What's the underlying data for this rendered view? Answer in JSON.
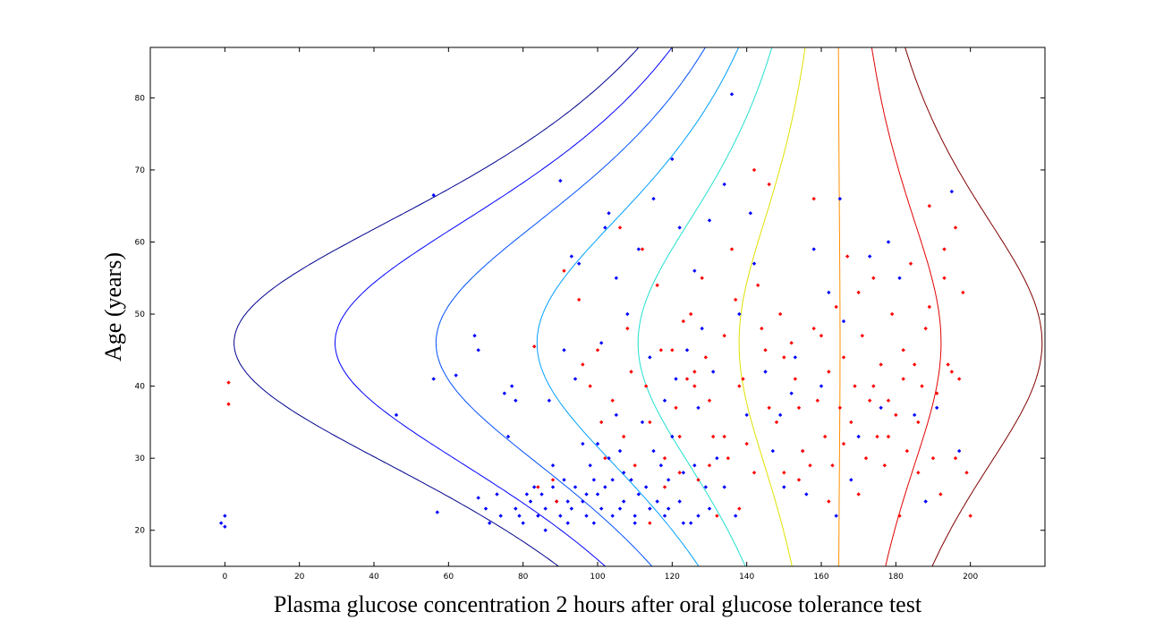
{
  "chart_data": {
    "type": "scatter",
    "title": "",
    "xlabel": "Plasma glucose concentration 2 hours after oral glucose tolerance test",
    "ylabel": "Age (years)",
    "xlim": [
      -20,
      220
    ],
    "ylim": [
      15,
      87
    ],
    "xticks": [
      0,
      20,
      40,
      60,
      80,
      100,
      120,
      140,
      160,
      180,
      200
    ],
    "yticks": [
      20,
      30,
      40,
      50,
      60,
      70,
      80
    ],
    "grid": false,
    "legend": "none",
    "contours": [
      {
        "color": "#00008f",
        "level": 1
      },
      {
        "color": "#0000ff",
        "level": 2
      },
      {
        "color": "#0050ff",
        "level": 3
      },
      {
        "color": "#00a0ff",
        "level": 4
      },
      {
        "color": "#20e0d0",
        "level": 5
      },
      {
        "color": "#e0e000",
        "level": 6
      },
      {
        "color": "#ff9000",
        "level": 7
      },
      {
        "color": "#e00000",
        "level": 8
      },
      {
        "color": "#800000",
        "level": 9
      }
    ],
    "series": [
      {
        "color": "#0000ff",
        "points": [
          [
            -1,
            21
          ],
          [
            0,
            22
          ],
          [
            0,
            20.5
          ],
          [
            46,
            36
          ],
          [
            56,
            66.5
          ],
          [
            56,
            41
          ],
          [
            57,
            22.5
          ],
          [
            62,
            41.5
          ],
          [
            67,
            47
          ],
          [
            68,
            45
          ],
          [
            68,
            24.5
          ],
          [
            70,
            23
          ],
          [
            71,
            21
          ],
          [
            73,
            25
          ],
          [
            74,
            22
          ],
          [
            75,
            39
          ],
          [
            76,
            33
          ],
          [
            77,
            40
          ],
          [
            78,
            38
          ],
          [
            78,
            23
          ],
          [
            79,
            22
          ],
          [
            80,
            21
          ],
          [
            81,
            25
          ],
          [
            82,
            24
          ],
          [
            83,
            26
          ],
          [
            84,
            22
          ],
          [
            85,
            25
          ],
          [
            86,
            23
          ],
          [
            86,
            20
          ],
          [
            87,
            38
          ],
          [
            88,
            29
          ],
          [
            89,
            24
          ],
          [
            90,
            22
          ],
          [
            90,
            68.5
          ],
          [
            91,
            45
          ],
          [
            91,
            27
          ],
          [
            92,
            21
          ],
          [
            93,
            23
          ],
          [
            94,
            41
          ],
          [
            94,
            26
          ],
          [
            95,
            57
          ],
          [
            96,
            24
          ],
          [
            97,
            22
          ],
          [
            98,
            29
          ],
          [
            99,
            21
          ],
          [
            100,
            32
          ],
          [
            100,
            25
          ],
          [
            101,
            23
          ],
          [
            101,
            46
          ],
          [
            102,
            62
          ],
          [
            103,
            64
          ],
          [
            104,
            27
          ],
          [
            104,
            22
          ],
          [
            105,
            55
          ],
          [
            105,
            36
          ],
          [
            106,
            31
          ],
          [
            107,
            24
          ],
          [
            108,
            50
          ],
          [
            109,
            27
          ],
          [
            110,
            22
          ],
          [
            111,
            59
          ],
          [
            112,
            35
          ],
          [
            113,
            26
          ],
          [
            114,
            44
          ],
          [
            115,
            66
          ],
          [
            116,
            24
          ],
          [
            117,
            29
          ],
          [
            118,
            38
          ],
          [
            119,
            23
          ],
          [
            120,
            71.5
          ],
          [
            120,
            33
          ],
          [
            121,
            41
          ],
          [
            122,
            62
          ],
          [
            123,
            28
          ],
          [
            124,
            45
          ],
          [
            125,
            21
          ],
          [
            126,
            56
          ],
          [
            127,
            37
          ],
          [
            128,
            48
          ],
          [
            129,
            26
          ],
          [
            130,
            63
          ],
          [
            131,
            42
          ],
          [
            132,
            30
          ],
          [
            134,
            68
          ],
          [
            136,
            80.5
          ],
          [
            137,
            22
          ],
          [
            138,
            50
          ],
          [
            140,
            36
          ],
          [
            141,
            64
          ],
          [
            142,
            57
          ],
          [
            145,
            42
          ],
          [
            147,
            31
          ],
          [
            149,
            36
          ],
          [
            150,
            26
          ],
          [
            152,
            39
          ],
          [
            153,
            44
          ],
          [
            155,
            31
          ],
          [
            156,
            25
          ],
          [
            158,
            59
          ],
          [
            160,
            40
          ],
          [
            162,
            53
          ],
          [
            164,
            22
          ],
          [
            165,
            66
          ],
          [
            166,
            49
          ],
          [
            168,
            27
          ],
          [
            170,
            33
          ],
          [
            173,
            58
          ],
          [
            176,
            37
          ],
          [
            178,
            60
          ],
          [
            181,
            55
          ],
          [
            185,
            36
          ],
          [
            188,
            24
          ],
          [
            191,
            37
          ],
          [
            195,
            67
          ],
          [
            197,
            31
          ],
          [
            93,
            58
          ],
          [
            96,
            32
          ],
          [
            99,
            27
          ],
          [
            103,
            30
          ],
          [
            107,
            28
          ],
          [
            111,
            25
          ],
          [
            115,
            31
          ],
          [
            119,
            27
          ],
          [
            122,
            24
          ],
          [
            126,
            29
          ],
          [
            130,
            23
          ],
          [
            134,
            26
          ],
          [
            88,
            26
          ],
          [
            92,
            24
          ],
          [
            97,
            25
          ],
          [
            102,
            26
          ],
          [
            106,
            23
          ],
          [
            110,
            21
          ],
          [
            114,
            23
          ],
          [
            118,
            22
          ],
          [
            123,
            21
          ],
          [
            127,
            22
          ]
        ]
      },
      {
        "color": "#ff0000",
        "points": [
          [
            1,
            40.5
          ],
          [
            1,
            37.5
          ],
          [
            83,
            45.5
          ],
          [
            84,
            26
          ],
          [
            88,
            27
          ],
          [
            89,
            24
          ],
          [
            91,
            56
          ],
          [
            95,
            52
          ],
          [
            96,
            43
          ],
          [
            98,
            40
          ],
          [
            100,
            45
          ],
          [
            101,
            35
          ],
          [
            102,
            30
          ],
          [
            104,
            38
          ],
          [
            106,
            62
          ],
          [
            107,
            33
          ],
          [
            108,
            48
          ],
          [
            109,
            42
          ],
          [
            110,
            29
          ],
          [
            112,
            59
          ],
          [
            113,
            40
          ],
          [
            114,
            35
          ],
          [
            116,
            54
          ],
          [
            117,
            45
          ],
          [
            118,
            30
          ],
          [
            120,
            45
          ],
          [
            121,
            37
          ],
          [
            122,
            33
          ],
          [
            123,
            49
          ],
          [
            124,
            41
          ],
          [
            125,
            50
          ],
          [
            126,
            42
          ],
          [
            127,
            27
          ],
          [
            128,
            55
          ],
          [
            129,
            44
          ],
          [
            130,
            38
          ],
          [
            131,
            33
          ],
          [
            132,
            22
          ],
          [
            134,
            47
          ],
          [
            135,
            30
          ],
          [
            136,
            59
          ],
          [
            137,
            52
          ],
          [
            138,
            40
          ],
          [
            139,
            41
          ],
          [
            140,
            32
          ],
          [
            142,
            70
          ],
          [
            143,
            54
          ],
          [
            144,
            48
          ],
          [
            145,
            45
          ],
          [
            146,
            68
          ],
          [
            148,
            35
          ],
          [
            149,
            50
          ],
          [
            150,
            28
          ],
          [
            152,
            46
          ],
          [
            153,
            41
          ],
          [
            154,
            37
          ],
          [
            155,
            31
          ],
          [
            157,
            29
          ],
          [
            158,
            66
          ],
          [
            159,
            38
          ],
          [
            160,
            47
          ],
          [
            161,
            33
          ],
          [
            162,
            42
          ],
          [
            163,
            29
          ],
          [
            164,
            51
          ],
          [
            165,
            37
          ],
          [
            166,
            44
          ],
          [
            167,
            58
          ],
          [
            168,
            35
          ],
          [
            169,
            40
          ],
          [
            170,
            25
          ],
          [
            171,
            47
          ],
          [
            172,
            30
          ],
          [
            173,
            38
          ],
          [
            174,
            55
          ],
          [
            175,
            33
          ],
          [
            176,
            43
          ],
          [
            177,
            29
          ],
          [
            178,
            38
          ],
          [
            179,
            50
          ],
          [
            180,
            36
          ],
          [
            181,
            22
          ],
          [
            182,
            41
          ],
          [
            183,
            31
          ],
          [
            184,
            57
          ],
          [
            185,
            43
          ],
          [
            186,
            35
          ],
          [
            187,
            40
          ],
          [
            188,
            48
          ],
          [
            189,
            65
          ],
          [
            190,
            30
          ],
          [
            191,
            39
          ],
          [
            192,
            25
          ],
          [
            193,
            59
          ],
          [
            194,
            43
          ],
          [
            195,
            42
          ],
          [
            196,
            30
          ],
          [
            197,
            41
          ],
          [
            198,
            53
          ],
          [
            199,
            28
          ],
          [
            200,
            22
          ],
          [
            196,
            62
          ],
          [
            193,
            55
          ],
          [
            189,
            51
          ],
          [
            186,
            28
          ],
          [
            182,
            45
          ],
          [
            178,
            33
          ],
          [
            174,
            40
          ],
          [
            170,
            53
          ],
          [
            166,
            32
          ],
          [
            162,
            24
          ],
          [
            158,
            48
          ],
          [
            154,
            27
          ],
          [
            150,
            44
          ],
          [
            146,
            37
          ],
          [
            142,
            28
          ],
          [
            138,
            23
          ],
          [
            134,
            33
          ],
          [
            130,
            29
          ],
          [
            126,
            40
          ],
          [
            122,
            28
          ],
          [
            118,
            26
          ],
          [
            114,
            21
          ]
        ]
      }
    ]
  }
}
